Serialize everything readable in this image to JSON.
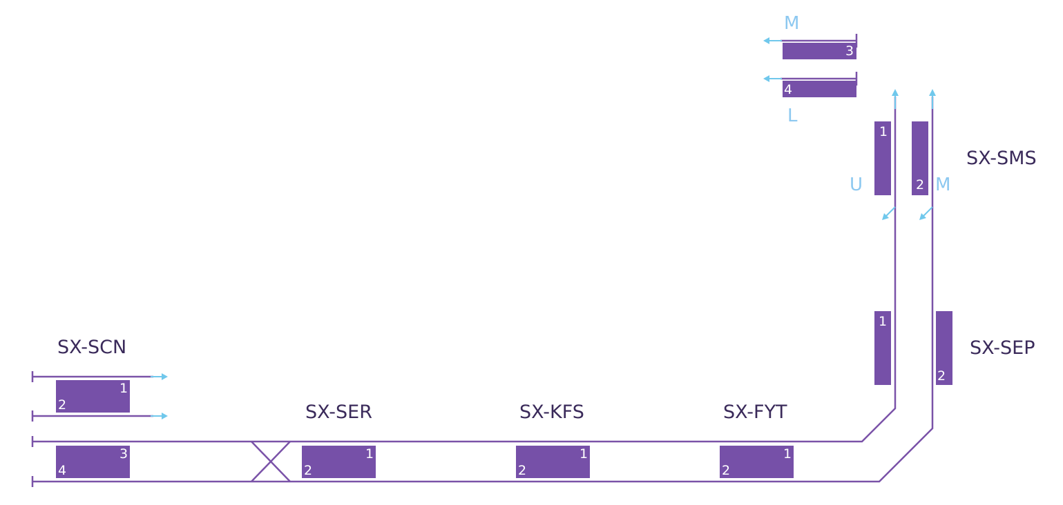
{
  "diagram": {
    "stations": {
      "scn": "SX-SCN",
      "ser": "SX-SER",
      "kfs": "SX-KFS",
      "fyt": "SX-FYT",
      "sms": "SX-SMS",
      "sep": "SX-SEP"
    },
    "platforms": {
      "scn_1": "1",
      "scn_2": "2",
      "scn_3": "3",
      "scn_4": "4",
      "ser_1": "1",
      "ser_2": "2",
      "kfs_1": "1",
      "kfs_2": "2",
      "fyt_1": "1",
      "fyt_2": "2",
      "sep_1": "1",
      "sep_2": "2",
      "sms_1": "1",
      "sms_2": "2",
      "top_3": "3",
      "top_4": "4"
    },
    "direction_labels": {
      "top_m": "M",
      "top_l": "L",
      "sms_u": "U",
      "sms_m": "M"
    },
    "colors": {
      "track": "#7a52a8",
      "platform": "#7650a8",
      "direction": "#70c8ec",
      "direction_label": "#8cc8f0",
      "station_label": "#3a2a5a"
    }
  }
}
